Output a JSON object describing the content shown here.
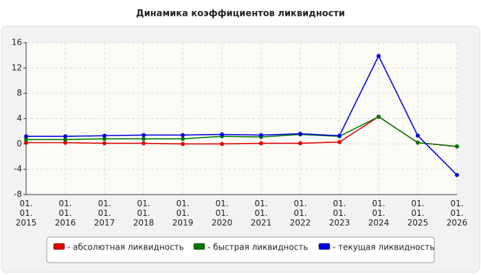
{
  "chart_data": {
    "type": "line",
    "title": "Динамика коэффициентов ликвидности",
    "categories": [
      "01.\n01.\n2015",
      "01.\n01.\n2016",
      "01.\n01.\n2017",
      "01.\n01.\n2018",
      "01.\n01.\n2019",
      "01.\n01.\n2020",
      "01.\n01.\n2021",
      "01.\n01.\n2022",
      "01.\n01.\n2023",
      "01.\n01.\n2024",
      "01.\n01.\n2025",
      "01.\n01.\n2026"
    ],
    "series": [
      {
        "name": "- абсолютная ликвидность",
        "color": "#e00000",
        "values": [
          0.2,
          0.2,
          0.1,
          0.1,
          0.0,
          0.0,
          0.1,
          0.1,
          0.3,
          4.3,
          0.2,
          -0.4
        ]
      },
      {
        "name": "- быстрая ликвидность",
        "color": "#007800",
        "values": [
          0.7,
          0.7,
          0.8,
          0.8,
          0.8,
          1.2,
          1.1,
          1.5,
          1.2,
          4.3,
          0.2,
          -0.4
        ]
      },
      {
        "name": "- текущая ликвидность",
        "color": "#0000e0",
        "values": [
          1.2,
          1.2,
          1.3,
          1.4,
          1.4,
          1.5,
          1.4,
          1.6,
          1.3,
          13.9,
          1.3,
          -4.9
        ]
      }
    ],
    "ylim": [
      -8,
      16
    ],
    "yticks": [
      -8,
      -4,
      0,
      4,
      8,
      12,
      16
    ],
    "grid": true
  }
}
